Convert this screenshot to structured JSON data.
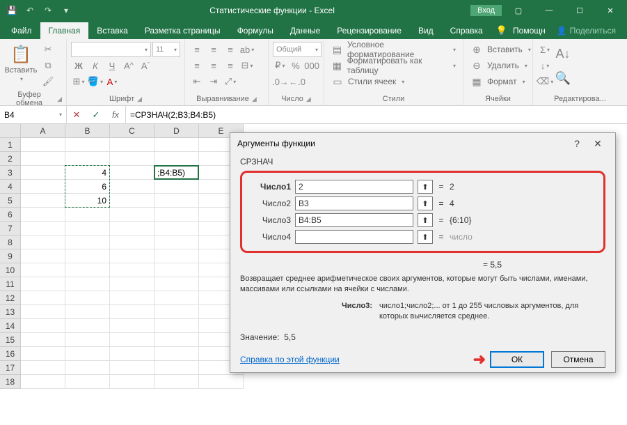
{
  "titlebar": {
    "title": "Статистические функции - Excel",
    "signin": "Вход"
  },
  "tabs": {
    "file": "Файл",
    "home": "Главная",
    "insert": "Вставка",
    "layout": "Разметка страницы",
    "formulas": "Формулы",
    "data": "Данные",
    "review": "Рецензирование",
    "view": "Вид",
    "help": "Справка",
    "tellme": "Помощн",
    "share": "Поделиться"
  },
  "ribbon": {
    "paste": "Вставить",
    "clipboard": "Буфер обмена",
    "font_group": "Шрифт",
    "font_size": "11",
    "alignment": "Выравнивание",
    "number_group": "Число",
    "number_format": "Общий",
    "styles_group": "Стили",
    "cond_format": "Условное форматирование",
    "format_table": "Форматировать как таблицу",
    "cell_styles": "Стили ячеек",
    "cells_group": "Ячейки",
    "insert_btn": "Вставить",
    "delete_btn": "Удалить",
    "format_btn": "Формат",
    "editing_group": "Редактирова..."
  },
  "formula_bar": {
    "name": "B4",
    "formula": "=СРЗНАЧ(2;B3;B4:B5)"
  },
  "grid": {
    "cols": [
      "A",
      "B",
      "C",
      "D",
      "E"
    ],
    "rows": 18,
    "b3": "4",
    "b4": "6",
    "b5": "10",
    "d3": ";B4:B5)"
  },
  "dialog": {
    "title": "Аргументы функции",
    "fn": "СРЗНАЧ",
    "args": [
      {
        "label": "Число1",
        "bold": true,
        "value": "2",
        "result": "2"
      },
      {
        "label": "Число2",
        "bold": false,
        "value": "B3",
        "result": "4"
      },
      {
        "label": "Число3",
        "bold": false,
        "value": "B4:B5",
        "result": "{6:10}"
      },
      {
        "label": "Число4",
        "bold": false,
        "value": "",
        "result": "число",
        "gray": true
      }
    ],
    "eq_result": "=   5,5",
    "description": "Возвращает среднее арифметическое своих аргументов, которые могут быть числами, именами, массивами или ссылками на ячейки с числами.",
    "arg_desc_label": "Число3:",
    "arg_desc_text": "число1;число2;... от 1 до 255 числовых аргументов, для которых вычисляется среднее.",
    "value_label": "Значение:",
    "value": "5,5",
    "help_link": "Справка по этой функции",
    "ok": "ОК",
    "cancel": "Отмена"
  },
  "colors": {
    "excel_green": "#217346",
    "highlight_red": "#e03030"
  }
}
